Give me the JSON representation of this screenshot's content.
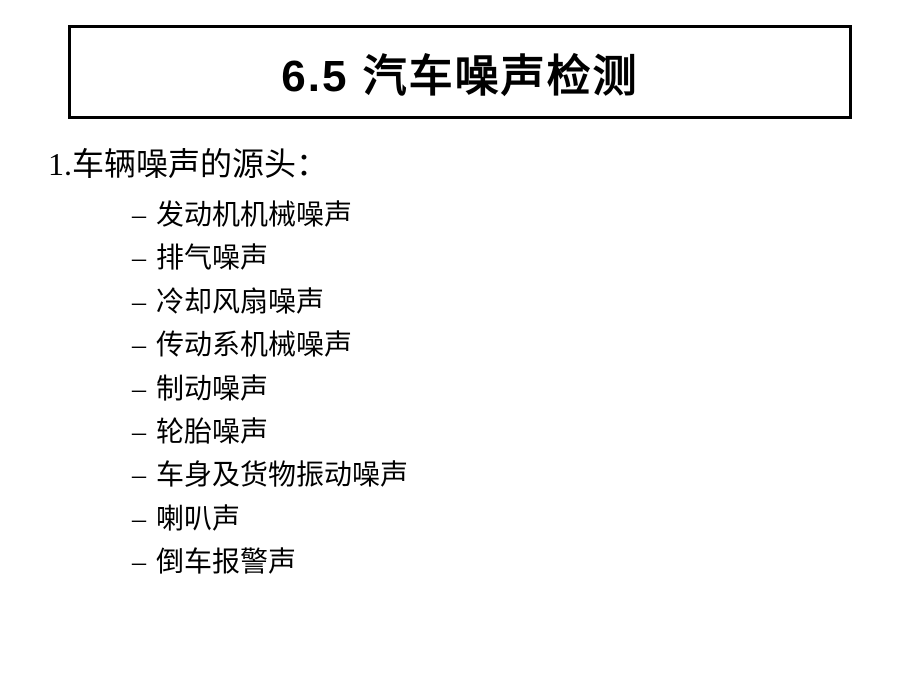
{
  "title": "6.5  汽车噪声检测",
  "main_item": "1.车辆噪声的源头：",
  "sub_items": [
    "发动机机械噪声",
    "排气噪声",
    "冷却风扇噪声",
    "传动系机械噪声",
    "制动噪声",
    "轮胎噪声",
    "车身及货物振动噪声",
    "喇叭声",
    "倒车报警声"
  ],
  "styling": {
    "background_color": "#ffffff",
    "title_border_color": "#000000",
    "title_border_width": 3,
    "title_fontsize": 44,
    "title_fontweight": "bold",
    "main_item_fontsize": 32,
    "sub_item_fontsize": 28,
    "text_color": "#000000",
    "bullet_char": "–"
  }
}
